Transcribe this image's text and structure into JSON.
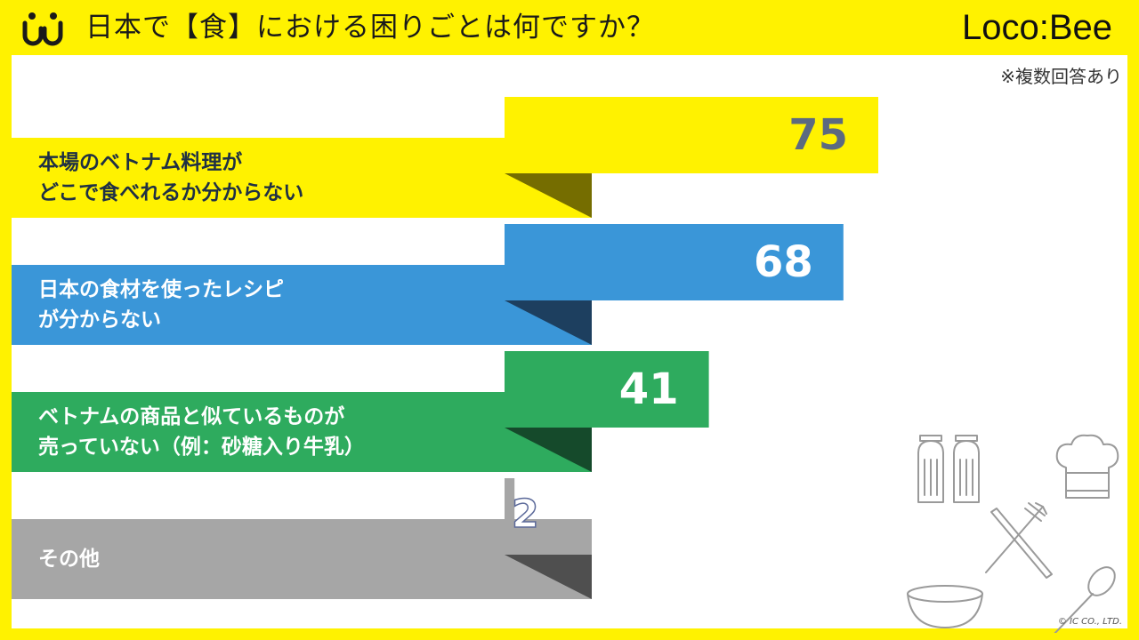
{
  "header": {
    "title": "日本で【食】における困りごとは何ですか？",
    "brand_left": "Loco",
    "brand_sep": ":",
    "brand_right": "Bee"
  },
  "note": "※複数回答あり",
  "copyright": "© IC CO., LTD.",
  "colors": {
    "background": "#fff200",
    "series": [
      "#fff200",
      "#3a96d8",
      "#2eab5e",
      "#a6a6a6"
    ],
    "shadows": [
      "#756d00",
      "#1d3f5f",
      "#154a2b",
      "#4f4f4f"
    ],
    "value_text": [
      "#5c6a80",
      "#ffffff",
      "#ffffff",
      "#ffffff"
    ],
    "label_text": [
      "#1f3044",
      "#ffffff",
      "#ffffff",
      "#ffffff"
    ]
  },
  "decor_icons": [
    "salt-shaker-icon",
    "pepper-shaker-icon",
    "chef-hat-icon",
    "fork-icon",
    "knife-icon",
    "bowl-icon",
    "spoon-icon"
  ],
  "chart_data": {
    "type": "bar",
    "orientation": "horizontal",
    "categories": [
      "本場のベトナム料理が\nどこで食べれるか分からない",
      "日本の食材を使ったレシピ\nが分からない",
      "ベトナムの商品と似ているものが\n売っていない（例：砂糖入り牛乳）",
      "その他"
    ],
    "values": [
      75,
      68,
      41,
      2
    ],
    "title": "日本で【食】における困りごとは何ですか？",
    "grid": false
  }
}
